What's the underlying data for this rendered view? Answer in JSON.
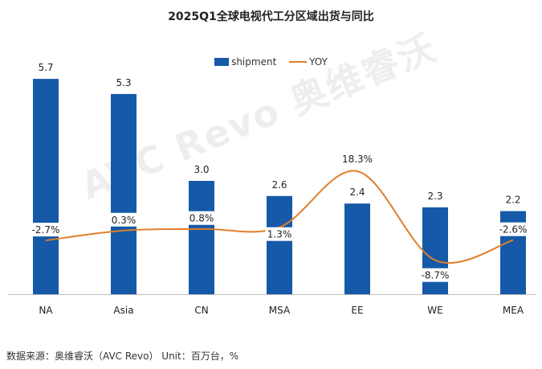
{
  "chart_data": {
    "type": "bar",
    "title": "2025Q1全球电视代工分区域出货与同比",
    "categories": [
      "NA",
      "Asia",
      "CN",
      "MSA",
      "EE",
      "WE",
      "MEA"
    ],
    "series": [
      {
        "name": "shipment",
        "type": "bar",
        "values": [
          5.7,
          5.3,
          3.0,
          2.6,
          2.4,
          2.3,
          2.2
        ],
        "labels": [
          "5.7",
          "5.3",
          "3.0",
          "2.6",
          "2.4",
          "2.3",
          "2.2"
        ]
      },
      {
        "name": "YOY",
        "type": "line",
        "values": [
          -2.7,
          0.3,
          0.8,
          1.3,
          18.3,
          -8.7,
          -2.6
        ],
        "labels": [
          "-2.7%",
          "0.3%",
          "0.8%",
          "1.3%",
          "18.3%",
          "-8.7%",
          "-2.6%"
        ]
      }
    ],
    "colors": {
      "bar": "#1559a8",
      "line": "#e07f2b"
    },
    "legend_position": "top",
    "grid": false
  },
  "source": "数据来源：奥维睿沃（AVC Revo） Unit：百万台，%",
  "watermark": "AVC Revo 奥维睿沃"
}
